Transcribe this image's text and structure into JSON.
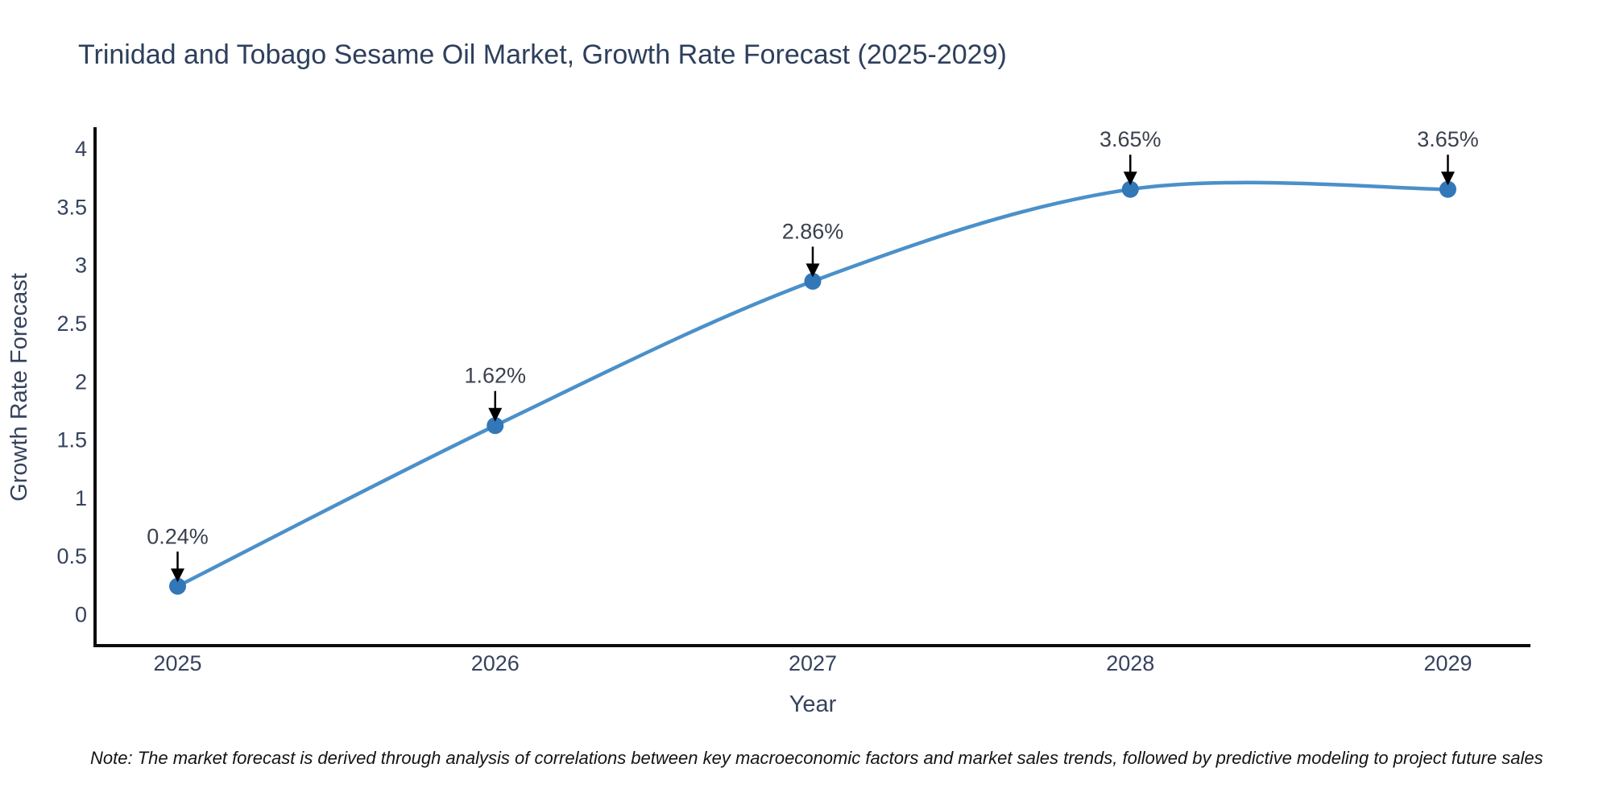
{
  "header": {
    "title": "Trinidad and Tobago Sesame Oil Market, Growth Rate Forecast (2025-2029)"
  },
  "chart_data": {
    "type": "line",
    "line_shape": "spline",
    "x": [
      2025,
      2026,
      2027,
      2028,
      2029
    ],
    "series": [
      {
        "name": "Growth Rate Forecast",
        "values": [
          0.24,
          1.62,
          2.86,
          3.65,
          3.65
        ]
      }
    ],
    "point_labels": [
      "0.24%",
      "1.62%",
      "2.86%",
      "3.65%",
      "3.65%"
    ],
    "title": "Trinidad and Tobago Sesame Oil Market, Growth Rate Forecast (2025-2029)",
    "xlabel": "Year",
    "ylabel": "Growth Rate Forecast",
    "xticks": [
      "2025",
      "2026",
      "2027",
      "2028",
      "2029"
    ],
    "yticks": [
      "0",
      "0.5",
      "1",
      "1.5",
      "2",
      "2.5",
      "3",
      "3.5",
      "4"
    ],
    "ytick_values": [
      0,
      0.5,
      1,
      1.5,
      2,
      2.5,
      3,
      3.5,
      4
    ],
    "xlim": [
      2024.74,
      2029.26
    ],
    "ylim": [
      -0.27,
      4.17
    ],
    "grid": false,
    "legend_position": "none",
    "annotations_have_arrows": true,
    "colors": {
      "line": "#4b90c9",
      "marker": "#3277b8",
      "axis": "#0d0d0d",
      "title_text": "#2e3f5c",
      "tick_text": "#36435e",
      "axis_label_text": "#36435e",
      "annotation_text": "#3a414d",
      "arrow": "#000000",
      "note_text": "#141414",
      "background": "#ffffff"
    }
  },
  "footer": {
    "note": "Note: The market forecast is derived through analysis of correlations between key macroeconomic factors and market sales trends, followed by predictive modeling to project future sales"
  }
}
